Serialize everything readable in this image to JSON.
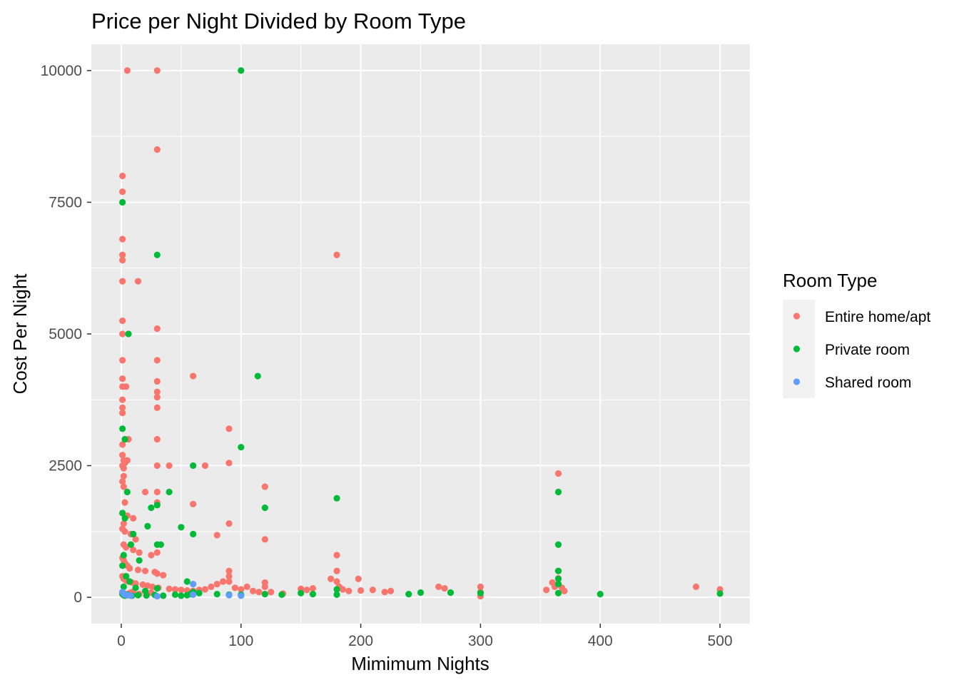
{
  "chart_data": {
    "type": "scatter",
    "title": "Price per Night Divided by Room Type",
    "xlabel": "Mimimum Nights",
    "ylabel": "Cost Per Night",
    "xlim": [
      -25,
      525
    ],
    "ylim": [
      -500,
      10500
    ],
    "x_ticks": [
      0,
      100,
      200,
      300,
      400,
      500
    ],
    "x_tick_labels": [
      "0",
      "100",
      "200",
      "300",
      "400",
      "500"
    ],
    "y_ticks": [
      0,
      2500,
      5000,
      7500,
      10000
    ],
    "y_tick_labels": [
      "0",
      "2500",
      "5000",
      "7500",
      "10000"
    ],
    "grid": true,
    "legend": {
      "title": "Room Type",
      "position": "right",
      "entries": [
        "Entire home/apt",
        "Private room",
        "Shared room"
      ]
    },
    "series": [
      {
        "name": "Entire home/apt",
        "color": "#F8766D",
        "points": [
          [
            5,
            10000
          ],
          [
            30,
            10000
          ],
          [
            30,
            8500
          ],
          [
            1,
            8000
          ],
          [
            1,
            7700
          ],
          [
            1,
            6800
          ],
          [
            1,
            6500
          ],
          [
            1,
            6400
          ],
          [
            1,
            6000
          ],
          [
            14,
            6000
          ],
          [
            1,
            5250
          ],
          [
            1,
            5000
          ],
          [
            30,
            5100
          ],
          [
            1,
            4500
          ],
          [
            30,
            4500
          ],
          [
            1,
            4150
          ],
          [
            1,
            4000
          ],
          [
            4,
            4000
          ],
          [
            30,
            4100
          ],
          [
            1,
            3750
          ],
          [
            30,
            3900
          ],
          [
            30,
            3800
          ],
          [
            1,
            3600
          ],
          [
            1,
            3500
          ],
          [
            30,
            3600
          ],
          [
            60,
            4200
          ],
          [
            180,
            6500
          ],
          [
            90,
            3200
          ],
          [
            6,
            3000
          ],
          [
            30,
            3000
          ],
          [
            1,
            2900
          ],
          [
            1,
            2700
          ],
          [
            2,
            2600
          ],
          [
            3,
            2550
          ],
          [
            5,
            2600
          ],
          [
            1,
            2500
          ],
          [
            2,
            2450
          ],
          [
            2,
            2300
          ],
          [
            30,
            2500
          ],
          [
            40,
            2500
          ],
          [
            70,
            2500
          ],
          [
            90,
            2550
          ],
          [
            120,
            2100
          ],
          [
            365,
            2350
          ],
          [
            1,
            2200
          ],
          [
            2,
            2100
          ],
          [
            20,
            2000
          ],
          [
            30,
            2000
          ],
          [
            3,
            1800
          ],
          [
            30,
            1800
          ],
          [
            60,
            1770
          ],
          [
            1,
            1600
          ],
          [
            5,
            1550
          ],
          [
            10,
            1500
          ],
          [
            2,
            1400
          ],
          [
            90,
            1400
          ],
          [
            1,
            1300
          ],
          [
            3,
            1250
          ],
          [
            8,
            1200
          ],
          [
            12,
            1100
          ],
          [
            80,
            1180
          ],
          [
            120,
            1100
          ],
          [
            2,
            1000
          ],
          [
            4,
            950
          ],
          [
            10,
            900
          ],
          [
            15,
            850
          ],
          [
            25,
            800
          ],
          [
            30,
            850
          ],
          [
            1,
            750
          ],
          [
            2,
            700
          ],
          [
            180,
            800
          ],
          [
            3,
            650
          ],
          [
            5,
            600
          ],
          [
            7,
            550
          ],
          [
            14,
            520
          ],
          [
            20,
            500
          ],
          [
            28,
            480
          ],
          [
            30,
            450
          ],
          [
            35,
            420
          ],
          [
            1,
            400
          ],
          [
            2,
            350
          ],
          [
            4,
            320
          ],
          [
            6,
            300
          ],
          [
            9,
            280
          ],
          [
            12,
            260
          ],
          [
            18,
            240
          ],
          [
            22,
            220
          ],
          [
            26,
            200
          ],
          [
            31,
            180
          ],
          [
            40,
            160
          ],
          [
            45,
            150
          ],
          [
            50,
            140
          ],
          [
            55,
            130
          ],
          [
            60,
            120
          ],
          [
            65,
            140
          ],
          [
            70,
            150
          ],
          [
            75,
            200
          ],
          [
            80,
            250
          ],
          [
            85,
            300
          ],
          [
            90,
            500
          ],
          [
            90,
            400
          ],
          [
            90,
            300
          ],
          [
            95,
            180
          ],
          [
            100,
            150
          ],
          [
            105,
            200
          ],
          [
            110,
            120
          ],
          [
            115,
            100
          ],
          [
            120,
            280
          ],
          [
            120,
            200
          ],
          [
            125,
            100
          ],
          [
            135,
            70
          ],
          [
            150,
            160
          ],
          [
            155,
            140
          ],
          [
            160,
            170
          ],
          [
            175,
            350
          ],
          [
            180,
            300
          ],
          [
            180,
            500
          ],
          [
            182,
            200
          ],
          [
            185,
            150
          ],
          [
            190,
            120
          ],
          [
            198,
            350
          ],
          [
            200,
            130
          ],
          [
            210,
            140
          ],
          [
            220,
            100
          ],
          [
            225,
            120
          ],
          [
            265,
            200
          ],
          [
            270,
            170
          ],
          [
            300,
            200
          ],
          [
            300,
            100
          ],
          [
            300,
            20
          ],
          [
            355,
            140
          ],
          [
            360,
            280
          ],
          [
            362,
            200
          ],
          [
            365,
            500
          ],
          [
            365,
            360
          ],
          [
            365,
            250
          ],
          [
            368,
            180
          ],
          [
            370,
            120
          ],
          [
            480,
            200
          ],
          [
            500,
            150
          ],
          [
            1,
            100
          ],
          [
            2,
            80
          ],
          [
            3,
            60
          ],
          [
            4,
            50
          ],
          [
            5,
            40
          ],
          [
            6,
            70
          ],
          [
            8,
            90
          ],
          [
            10,
            110
          ],
          [
            15,
            60
          ],
          [
            25,
            90
          ]
        ]
      },
      {
        "name": "Private room",
        "color": "#00BA38",
        "points": [
          [
            100,
            10000
          ],
          [
            1,
            7500
          ],
          [
            30,
            6500
          ],
          [
            6,
            5000
          ],
          [
            114,
            4200
          ],
          [
            1,
            3200
          ],
          [
            3,
            3000
          ],
          [
            100,
            2850
          ],
          [
            60,
            2500
          ],
          [
            5,
            2000
          ],
          [
            40,
            2000
          ],
          [
            365,
            2000
          ],
          [
            180,
            1880
          ],
          [
            30,
            1750
          ],
          [
            25,
            1700
          ],
          [
            120,
            1700
          ],
          [
            22,
            1350
          ],
          [
            50,
            1330
          ],
          [
            60,
            1200
          ],
          [
            1,
            1600
          ],
          [
            3,
            1500
          ],
          [
            10,
            1200
          ],
          [
            8,
            1000
          ],
          [
            30,
            1000
          ],
          [
            33,
            1000
          ],
          [
            365,
            1000
          ],
          [
            2,
            800
          ],
          [
            15,
            700
          ],
          [
            1,
            600
          ],
          [
            365,
            500
          ],
          [
            4,
            400
          ],
          [
            365,
            350
          ],
          [
            7,
            300
          ],
          [
            55,
            300
          ],
          [
            365,
            250
          ],
          [
            2,
            200
          ],
          [
            12,
            180
          ],
          [
            30,
            170
          ],
          [
            180,
            150
          ],
          [
            20,
            120
          ],
          [
            60,
            100
          ],
          [
            65,
            80
          ],
          [
            80,
            60
          ],
          [
            90,
            50
          ],
          [
            100,
            50
          ],
          [
            120,
            60
          ],
          [
            134,
            50
          ],
          [
            150,
            80
          ],
          [
            160,
            60
          ],
          [
            180,
            50
          ],
          [
            240,
            60
          ],
          [
            250,
            90
          ],
          [
            275,
            90
          ],
          [
            300,
            80
          ],
          [
            365,
            80
          ],
          [
            400,
            60
          ],
          [
            500,
            70
          ],
          [
            1,
            60
          ],
          [
            2,
            40
          ],
          [
            3,
            30
          ],
          [
            5,
            50
          ],
          [
            9,
            30
          ],
          [
            14,
            40
          ],
          [
            21,
            35
          ],
          [
            28,
            45
          ],
          [
            35,
            30
          ],
          [
            45,
            50
          ],
          [
            50,
            30
          ],
          [
            55,
            40
          ],
          [
            58,
            60
          ]
        ]
      },
      {
        "name": "Shared room",
        "color": "#619CFF",
        "points": [
          [
            1,
            100
          ],
          [
            2,
            70
          ],
          [
            3,
            50
          ],
          [
            5,
            40
          ],
          [
            8,
            30
          ],
          [
            30,
            20
          ],
          [
            60,
            250
          ],
          [
            60,
            50
          ],
          [
            90,
            40
          ],
          [
            100,
            30
          ]
        ]
      }
    ]
  }
}
